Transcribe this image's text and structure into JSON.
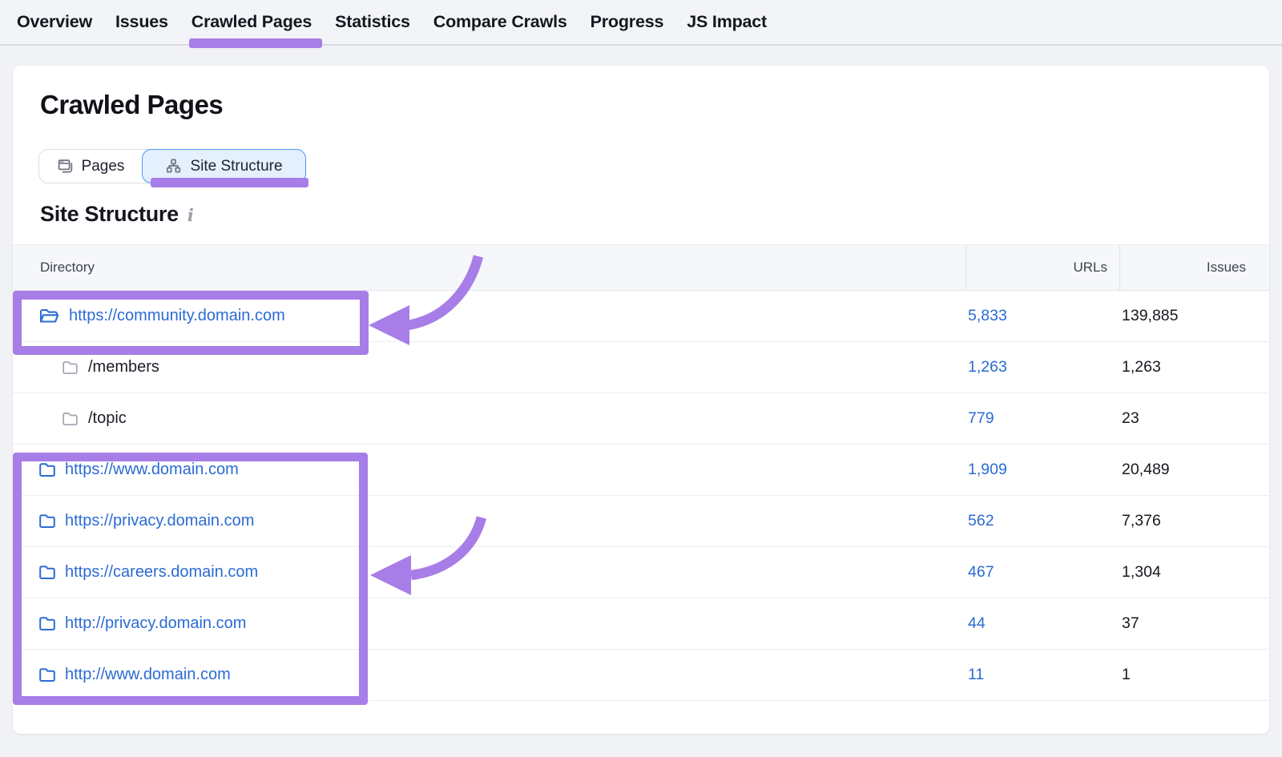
{
  "nav": {
    "tabs": [
      {
        "label": "Overview",
        "active": false
      },
      {
        "label": "Issues",
        "active": false
      },
      {
        "label": "Crawled Pages",
        "active": true
      },
      {
        "label": "Statistics",
        "active": false
      },
      {
        "label": "Compare Crawls",
        "active": false
      },
      {
        "label": "Progress",
        "active": false
      },
      {
        "label": "JS Impact",
        "active": false
      }
    ]
  },
  "page": {
    "title": "Crawled Pages"
  },
  "view_toggle": {
    "pages_label": "Pages",
    "site_structure_label": "Site Structure",
    "selected": "Site Structure"
  },
  "section": {
    "title": "Site Structure",
    "info_glyph": "i"
  },
  "table": {
    "columns": [
      "Directory",
      "URLs",
      "Issues"
    ],
    "rows": [
      {
        "directory": "https://community.domain.com",
        "urls": "5,833",
        "issues": "139,885",
        "level": 0,
        "folder": "open-blue",
        "is_link": true
      },
      {
        "directory": "/members",
        "urls": "1,263",
        "issues": "1,263",
        "level": 1,
        "folder": "closed-gray",
        "is_link": false
      },
      {
        "directory": "/topic",
        "urls": "779",
        "issues": "23",
        "level": 1,
        "folder": "closed-gray",
        "is_link": false
      },
      {
        "directory": "https://www.domain.com",
        "urls": "1,909",
        "issues": "20,489",
        "level": 0,
        "folder": "closed-blue",
        "is_link": true
      },
      {
        "directory": "https://privacy.domain.com",
        "urls": "562",
        "issues": "7,376",
        "level": 0,
        "folder": "closed-blue",
        "is_link": true
      },
      {
        "directory": "https://careers.domain.com",
        "urls": "467",
        "issues": "1,304",
        "level": 0,
        "folder": "closed-blue",
        "is_link": true
      },
      {
        "directory": "http://privacy.domain.com",
        "urls": "44",
        "issues": "37",
        "level": 0,
        "folder": "closed-blue",
        "is_link": true
      },
      {
        "directory": "http://www.domain.com",
        "urls": "11",
        "issues": "1",
        "level": 0,
        "folder": "closed-blue",
        "is_link": true
      }
    ]
  },
  "annotations": {
    "highlight_boxes": [
      "row-community",
      "rows-domain-group"
    ],
    "arrows": [
      "arrow-to-community-row",
      "arrow-to-careers-row"
    ]
  },
  "colors": {
    "annotation_purple": "#a77de7",
    "link_blue": "#2b6bd4",
    "selected_toggle_border": "#4f95f7",
    "selected_toggle_bg": "#e4f0fe",
    "gray_folder": "#a6aab4",
    "icon_gray": "#70747f"
  }
}
